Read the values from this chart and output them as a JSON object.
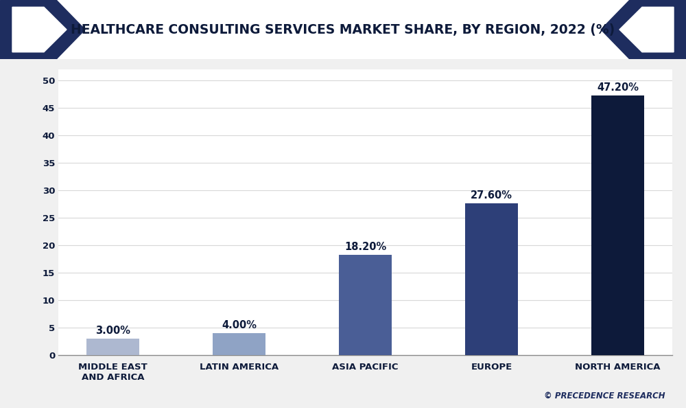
{
  "title": "HEALTHCARE CONSULTING SERVICES MARKET SHARE, BY REGION, 2022 (%)",
  "categories": [
    "MIDDLE EAST\nAND AFRICA",
    "LATIN AMERICA",
    "ASIA PACIFIC",
    "EUROPE",
    "NORTH AMERICA"
  ],
  "values": [
    3.0,
    4.0,
    18.2,
    27.6,
    47.2
  ],
  "labels": [
    "3.00%",
    "4.00%",
    "18.20%",
    "27.60%",
    "47.20%"
  ],
  "bar_colors": [
    "#adb8d0",
    "#8fa3c5",
    "#4a5e96",
    "#2d3f78",
    "#0d1a3a"
  ],
  "ylim": [
    0,
    52
  ],
  "yticks": [
    0,
    5,
    10,
    15,
    20,
    25,
    30,
    35,
    40,
    45,
    50
  ],
  "background_color": "#ffffff",
  "title_color": "#0d1a3a",
  "bar_label_color": "#0d1a3a",
  "tick_color": "#0d1a3a",
  "grid_color": "#d8d8d8",
  "watermark": "© PRECEDENCE RESEARCH",
  "header_bg_color": "#1e2d5f",
  "title_fontsize": 13.5,
  "bar_label_fontsize": 10.5,
  "tick_fontsize": 9.5,
  "watermark_color": "#1e2d5f",
  "fig_bg_color": "#f0f0f0"
}
